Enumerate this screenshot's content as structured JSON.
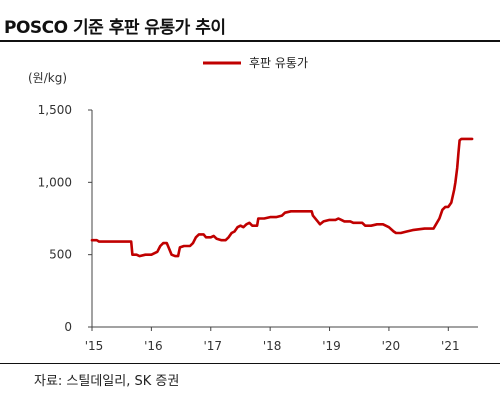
{
  "header": {
    "title": "POSCO 기준 후판 유통가 추이"
  },
  "footer": {
    "source": "자료: 스틸데일리, SK 증권"
  },
  "chart_data": {
    "type": "line",
    "title": "POSCO 기준 후판 유통가 추이",
    "unit_label": "(원/kg)",
    "xlabel": "",
    "ylabel": "",
    "xlim": [
      2015,
      2021.5
    ],
    "ylim": [
      0,
      1500
    ],
    "x_ticks": [
      {
        "value": 2015,
        "label": "'15"
      },
      {
        "value": 2016,
        "label": "'16"
      },
      {
        "value": 2017,
        "label": "'17"
      },
      {
        "value": 2018,
        "label": "'18"
      },
      {
        "value": 2019,
        "label": "'19"
      },
      {
        "value": 2020,
        "label": "'20"
      },
      {
        "value": 2021,
        "label": "'21"
      }
    ],
    "y_ticks": [
      {
        "value": 0,
        "label": "0"
      },
      {
        "value": 500,
        "label": "500"
      },
      {
        "value": 1000,
        "label": "1,000"
      },
      {
        "value": 1500,
        "label": "1,500"
      }
    ],
    "grid": false,
    "legend_position": "top-center",
    "series": [
      {
        "name": "후판 유통가",
        "color": "#c00000",
        "points": [
          [
            2015.0,
            600
          ],
          [
            2015.08,
            600
          ],
          [
            2015.12,
            590
          ],
          [
            2015.4,
            590
          ],
          [
            2015.6,
            590
          ],
          [
            2015.66,
            590
          ],
          [
            2015.68,
            500
          ],
          [
            2015.75,
            500
          ],
          [
            2015.8,
            490
          ],
          [
            2015.9,
            500
          ],
          [
            2016.0,
            500
          ],
          [
            2016.1,
            520
          ],
          [
            2016.15,
            560
          ],
          [
            2016.2,
            580
          ],
          [
            2016.26,
            580
          ],
          [
            2016.3,
            540
          ],
          [
            2016.34,
            500
          ],
          [
            2016.4,
            490
          ],
          [
            2016.45,
            490
          ],
          [
            2016.48,
            550
          ],
          [
            2016.55,
            560
          ],
          [
            2016.65,
            560
          ],
          [
            2016.7,
            580
          ],
          [
            2016.75,
            620
          ],
          [
            2016.8,
            640
          ],
          [
            2016.88,
            640
          ],
          [
            2016.92,
            620
          ],
          [
            2017.0,
            620
          ],
          [
            2017.05,
            630
          ],
          [
            2017.1,
            610
          ],
          [
            2017.18,
            600
          ],
          [
            2017.25,
            600
          ],
          [
            2017.3,
            620
          ],
          [
            2017.35,
            650
          ],
          [
            2017.4,
            660
          ],
          [
            2017.45,
            690
          ],
          [
            2017.5,
            700
          ],
          [
            2017.55,
            690
          ],
          [
            2017.6,
            710
          ],
          [
            2017.65,
            720
          ],
          [
            2017.7,
            700
          ],
          [
            2017.78,
            700
          ],
          [
            2017.8,
            750
          ],
          [
            2017.9,
            750
          ],
          [
            2018.0,
            760
          ],
          [
            2018.1,
            760
          ],
          [
            2018.2,
            770
          ],
          [
            2018.25,
            790
          ],
          [
            2018.35,
            800
          ],
          [
            2018.5,
            800
          ],
          [
            2018.7,
            800
          ],
          [
            2018.72,
            770
          ],
          [
            2018.8,
            730
          ],
          [
            2018.84,
            710
          ],
          [
            2018.9,
            730
          ],
          [
            2019.0,
            740
          ],
          [
            2019.1,
            740
          ],
          [
            2019.15,
            750
          ],
          [
            2019.2,
            740
          ],
          [
            2019.25,
            730
          ],
          [
            2019.35,
            730
          ],
          [
            2019.4,
            720
          ],
          [
            2019.55,
            720
          ],
          [
            2019.6,
            700
          ],
          [
            2019.7,
            700
          ],
          [
            2019.8,
            710
          ],
          [
            2019.9,
            710
          ],
          [
            2020.0,
            690
          ],
          [
            2020.08,
            660
          ],
          [
            2020.12,
            650
          ],
          [
            2020.2,
            650
          ],
          [
            2020.3,
            660
          ],
          [
            2020.4,
            670
          ],
          [
            2020.6,
            680
          ],
          [
            2020.75,
            680
          ],
          [
            2020.78,
            700
          ],
          [
            2020.85,
            750
          ],
          [
            2020.9,
            810
          ],
          [
            2020.95,
            830
          ],
          [
            2021.0,
            830
          ],
          [
            2021.05,
            860
          ],
          [
            2021.1,
            950
          ],
          [
            2021.12,
            1000
          ],
          [
            2021.15,
            1100
          ],
          [
            2021.17,
            1200
          ],
          [
            2021.19,
            1290
          ],
          [
            2021.22,
            1300
          ],
          [
            2021.3,
            1300
          ],
          [
            2021.4,
            1300
          ]
        ]
      }
    ]
  }
}
